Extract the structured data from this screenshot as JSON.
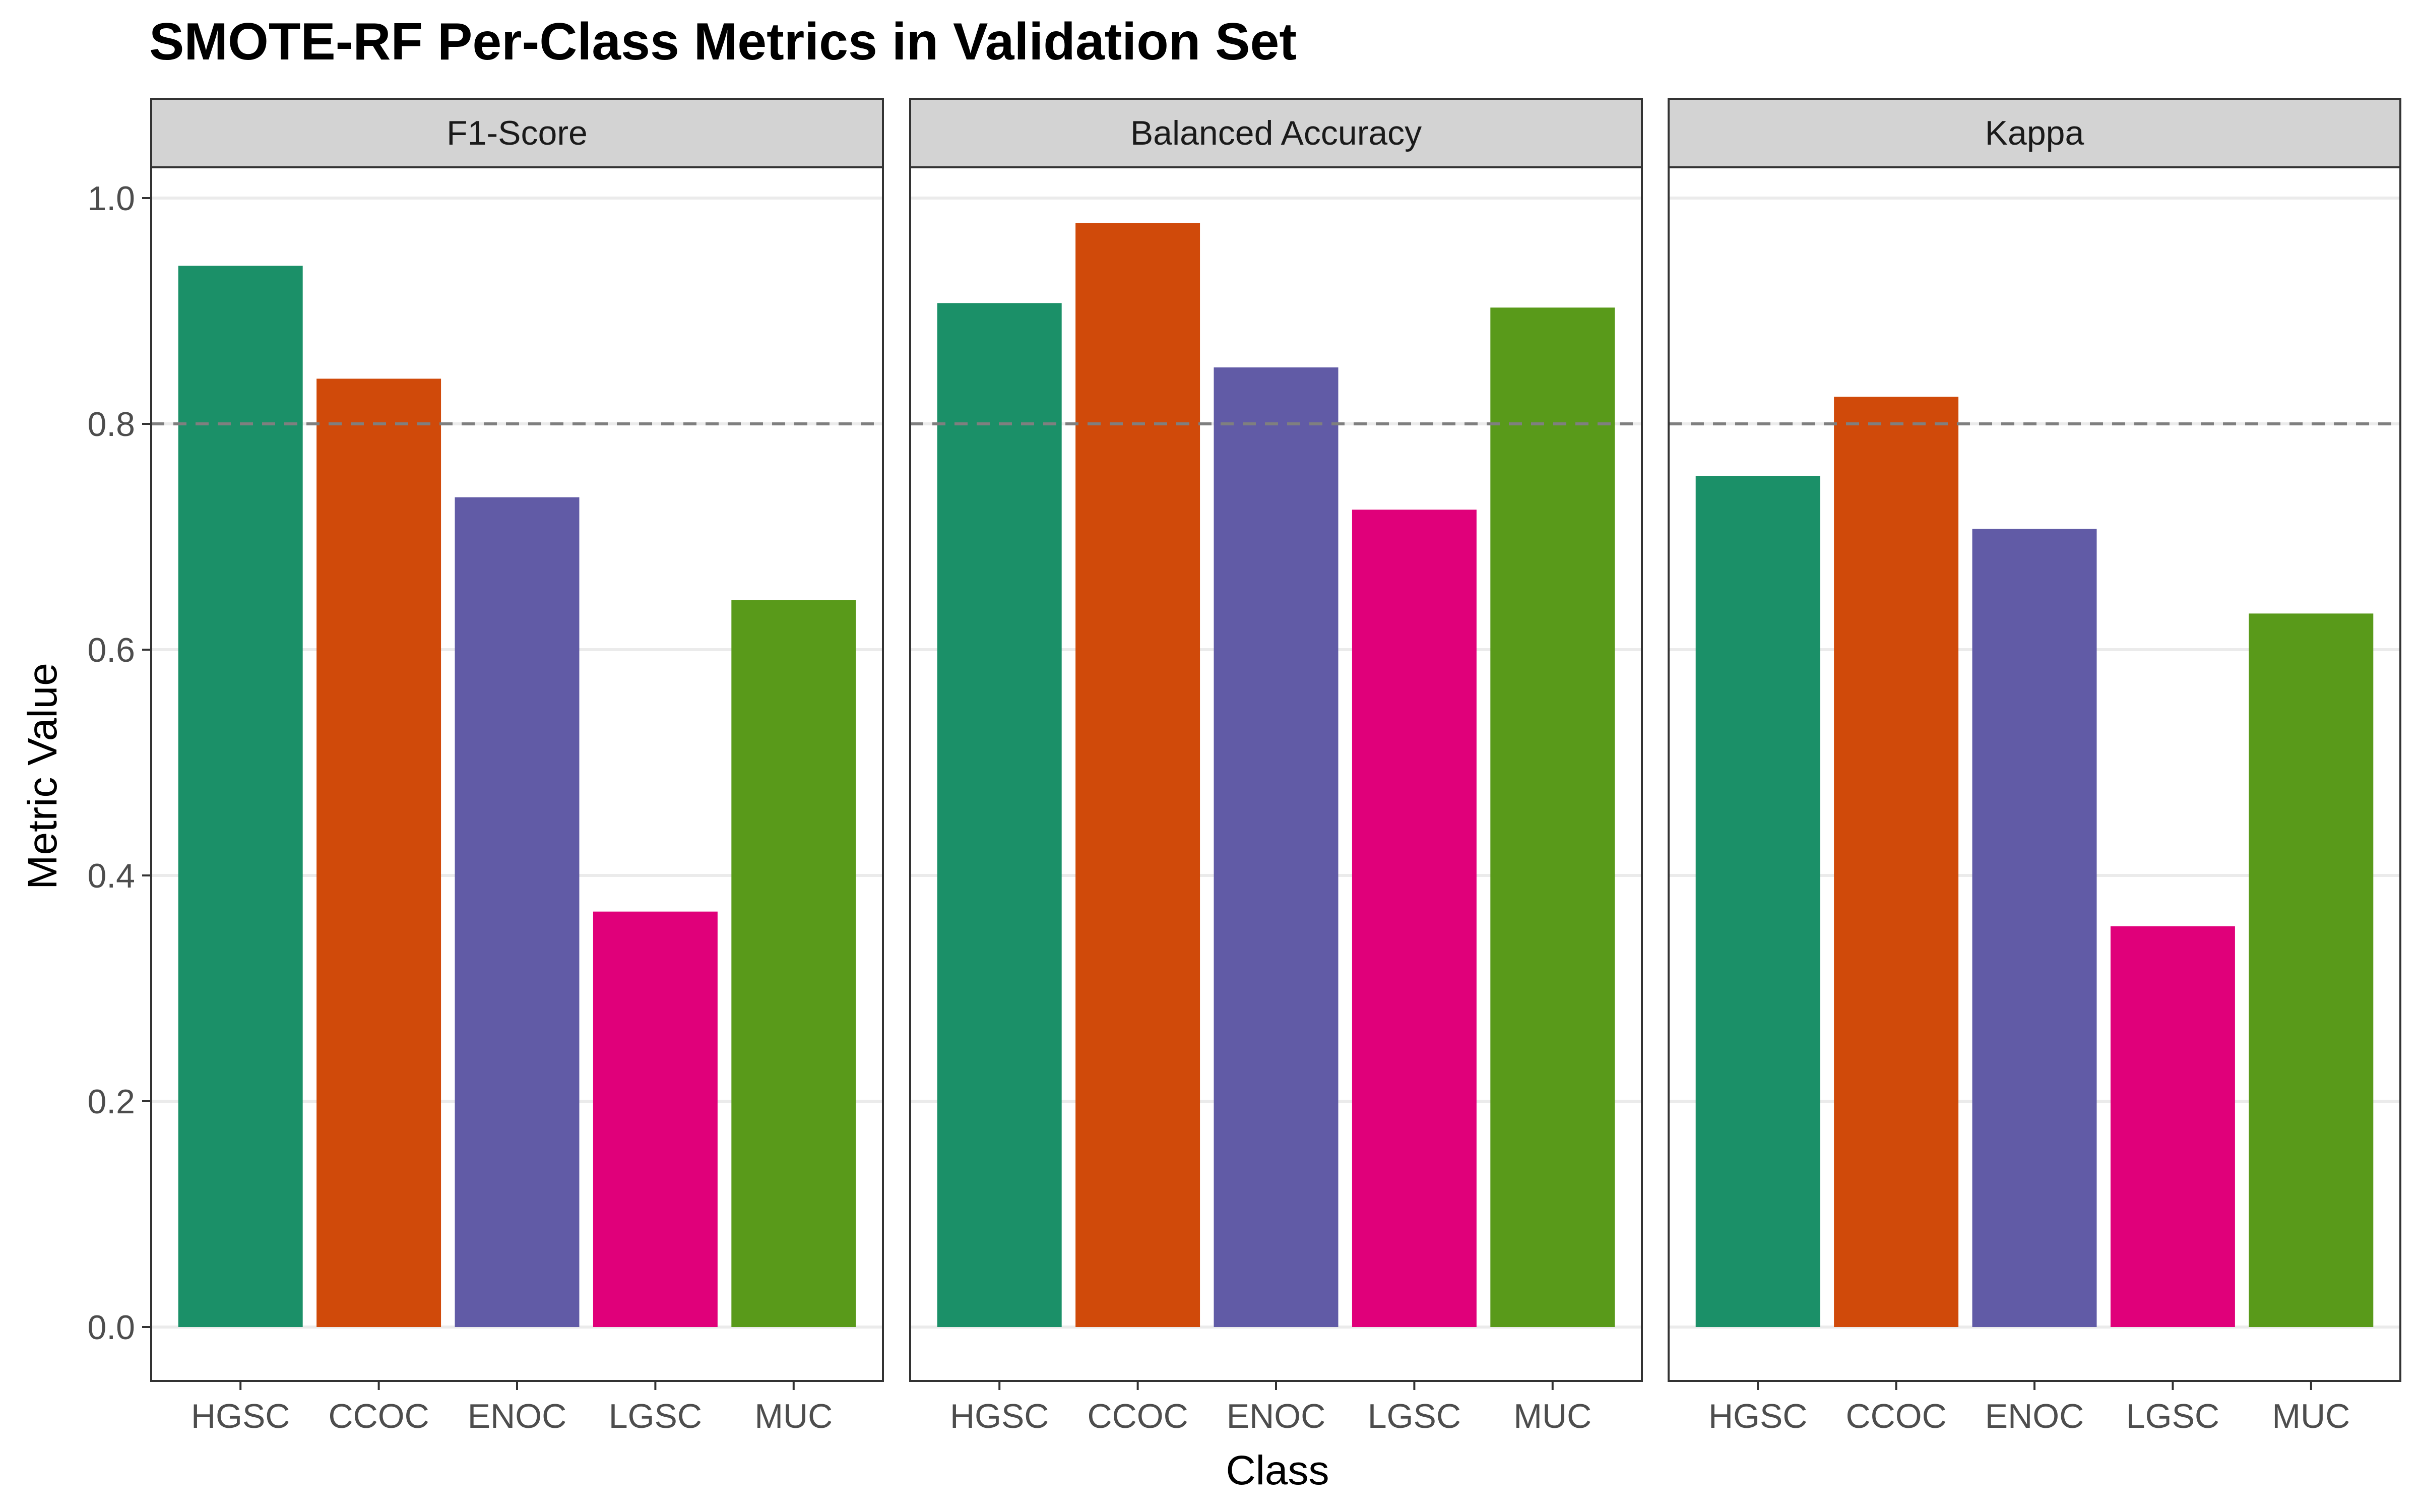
{
  "chart_data": {
    "type": "bar",
    "title": "SMOTE-RF Per-Class Metrics in Validation Set",
    "xlabel": "Class",
    "ylabel": "Metric Value",
    "ylim": [
      0,
      1.0
    ],
    "yticks": [
      "0.0",
      "0.2",
      "0.4",
      "0.6",
      "0.8",
      "1.0"
    ],
    "reference_line": 0.8,
    "grid": true,
    "legend": "none",
    "categories": [
      "HGSC",
      "CCOC",
      "ENOC",
      "LGSC",
      "MUC"
    ],
    "colors": [
      "#1B9068",
      "#D04A0A",
      "#615BA6",
      "#E0007A",
      "#599A1A"
    ],
    "panels": [
      {
        "name": "F1-Score",
        "values": [
          0.94,
          0.84,
          0.735,
          0.368,
          0.644
        ]
      },
      {
        "name": "Balanced Accuracy",
        "values": [
          0.907,
          0.978,
          0.85,
          0.724,
          0.903
        ]
      },
      {
        "name": "Kappa",
        "values": [
          0.754,
          0.824,
          0.707,
          0.355,
          0.632
        ]
      }
    ]
  }
}
